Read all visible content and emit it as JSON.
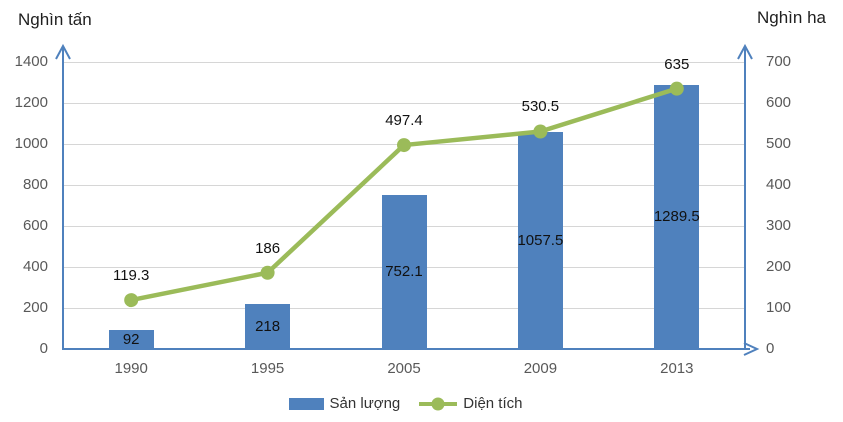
{
  "chart_data": {
    "type": "combo-bar-line",
    "title": "",
    "categories": [
      "1990",
      "1995",
      "2005",
      "2009",
      "2013"
    ],
    "series": [
      {
        "name": "Sản lượng",
        "type": "bar",
        "axis": "left",
        "color": "#4f81bd",
        "values": [
          92,
          218,
          752.1,
          1057.5,
          1289.5
        ]
      },
      {
        "name": "Diện tích",
        "type": "line",
        "axis": "right",
        "color": "#9bbb59",
        "values": [
          119.3,
          186,
          497.4,
          530.5,
          635
        ]
      }
    ],
    "left_axis": {
      "title": "Nghìn tấn",
      "min": 0,
      "max": 1400,
      "tick_step": 200,
      "ticks": [
        0,
        200,
        400,
        600,
        800,
        1000,
        1200,
        1400
      ]
    },
    "right_axis": {
      "title": "Nghìn ha",
      "min": 0,
      "max": 700,
      "tick_step": 100,
      "ticks": [
        0,
        100,
        200,
        300,
        400,
        500,
        600,
        700
      ]
    },
    "grid": true,
    "legend_position": "bottom",
    "colors": {
      "grid": "#d6d6d6",
      "axis": "#4f81bd",
      "tick_label": "#595959",
      "data_label": "#111111"
    }
  }
}
